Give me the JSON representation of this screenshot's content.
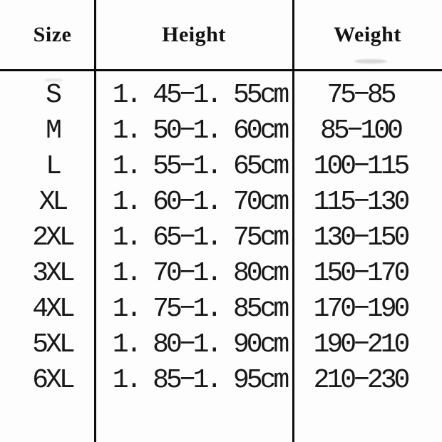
{
  "page": {
    "background_color": "#fdfdfd",
    "line_color": "#0d0d0d",
    "text_color": "#181818"
  },
  "table": {
    "headers": [
      "Size",
      "Height",
      "Weight"
    ],
    "rows": [
      {
        "size": "S",
        "height": "1. 45−1. 55cm",
        "weight": "75−85"
      },
      {
        "size": "M",
        "height": "1. 50−1. 60cm",
        "weight": "85−100"
      },
      {
        "size": "L",
        "height": "1. 55−1. 65cm",
        "weight": "100−115"
      },
      {
        "size": "XL",
        "height": "1. 60−1. 70cm",
        "weight": "115−130"
      },
      {
        "size": "2XL",
        "height": "1. 65−1. 75cm",
        "weight": "130−150"
      },
      {
        "size": "3XL",
        "height": "1. 70−1. 80cm",
        "weight": "150−170"
      },
      {
        "size": "4XL",
        "height": "1. 75−1. 85cm",
        "weight": "170−190"
      },
      {
        "size": "5XL",
        "height": "1. 80−1. 90cm",
        "weight": "190−210"
      },
      {
        "size": "6XL",
        "height": "1. 85−1. 95cm",
        "weight": "210−230"
      }
    ]
  },
  "chart_data": {
    "type": "table",
    "title": "",
    "columns": [
      "Size",
      "Height",
      "Weight"
    ],
    "rows": [
      [
        "S",
        "1.45-1.55cm",
        "75-85"
      ],
      [
        "M",
        "1.50-1.60cm",
        "85-100"
      ],
      [
        "L",
        "1.55-1.65cm",
        "100-115"
      ],
      [
        "XL",
        "1.60-1.70cm",
        "115-130"
      ],
      [
        "2XL",
        "1.65-1.75cm",
        "130-150"
      ],
      [
        "3XL",
        "1.70-1.80cm",
        "150-170"
      ],
      [
        "4XL",
        "1.75-1.85cm",
        "170-190"
      ],
      [
        "5XL",
        "1.80-1.90cm",
        "190-210"
      ],
      [
        "6XL",
        "1.85-1.95cm",
        "210-230"
      ]
    ],
    "layout": {
      "grid": "two vertical column dividers full height, one horizontal divider under header row",
      "legend": "none",
      "units_note": "height column printed with unit 'cm', weight column unitless"
    }
  }
}
